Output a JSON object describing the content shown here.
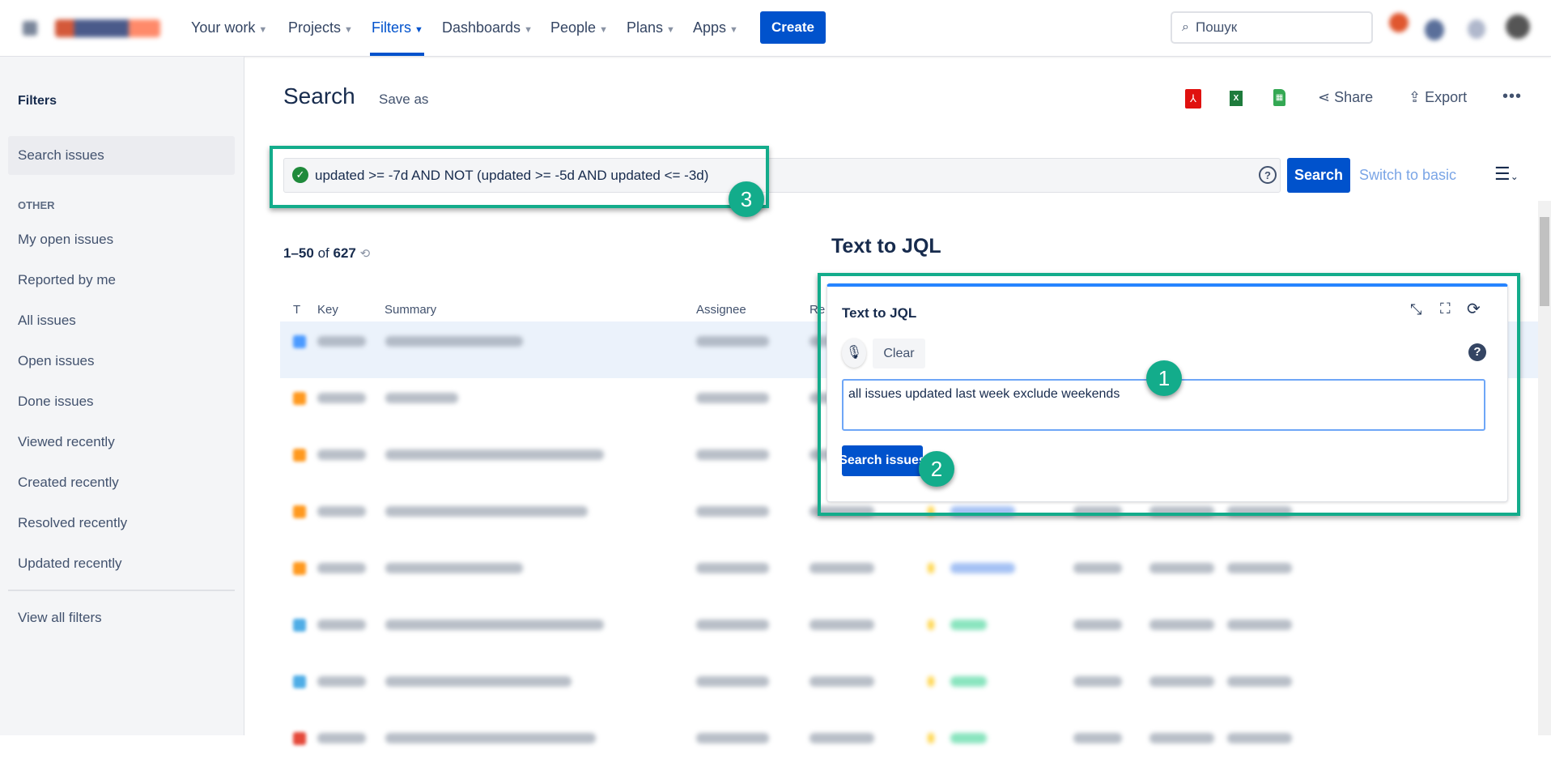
{
  "topnav": {
    "items": [
      {
        "label": "Your work"
      },
      {
        "label": "Projects"
      },
      {
        "label": "Filters",
        "active": true
      },
      {
        "label": "Dashboards"
      },
      {
        "label": "People"
      },
      {
        "label": "Plans"
      },
      {
        "label": "Apps"
      }
    ],
    "create_label": "Create",
    "search_placeholder": "Пошук"
  },
  "sidebar": {
    "title": "Filters",
    "selected": "Search issues",
    "section_label": "OTHER",
    "items": [
      "My open issues",
      "Reported by me",
      "All issues",
      "Open issues",
      "Done issues",
      "Viewed recently",
      "Created recently",
      "Resolved recently",
      "Updated recently"
    ],
    "view_all": "View all filters"
  },
  "page": {
    "title": "Search",
    "save_as": "Save as",
    "actions": {
      "share": "Share",
      "export": "Export"
    },
    "jql": "updated >= -7d AND NOT (updated >= -5d AND updated <= -3d)",
    "search_label": "Search",
    "switch_label": "Switch to basic",
    "count": {
      "range": "1–50",
      "of": "of",
      "total": "627"
    }
  },
  "table": {
    "headers": [
      "T",
      "Key",
      "Summary",
      "Assignee",
      "Re"
    ],
    "type_colors": [
      "#4c9aff",
      "#ff991f",
      "#ff991f",
      "#ff991f",
      "#ff991f",
      "#4fade6",
      "#4fade6",
      "#e5493a"
    ]
  },
  "text_to_jql": {
    "heading": "Text to JQL",
    "panel_title": "Text to JQL",
    "clear_label": "Clear",
    "input_value": "all issues updated last week exclude weekends",
    "search_issues_label": "Search issues"
  },
  "annotations": [
    "1",
    "2",
    "3"
  ],
  "colors": {
    "accent": "#0052cc",
    "highlight": "#13ac8b"
  }
}
